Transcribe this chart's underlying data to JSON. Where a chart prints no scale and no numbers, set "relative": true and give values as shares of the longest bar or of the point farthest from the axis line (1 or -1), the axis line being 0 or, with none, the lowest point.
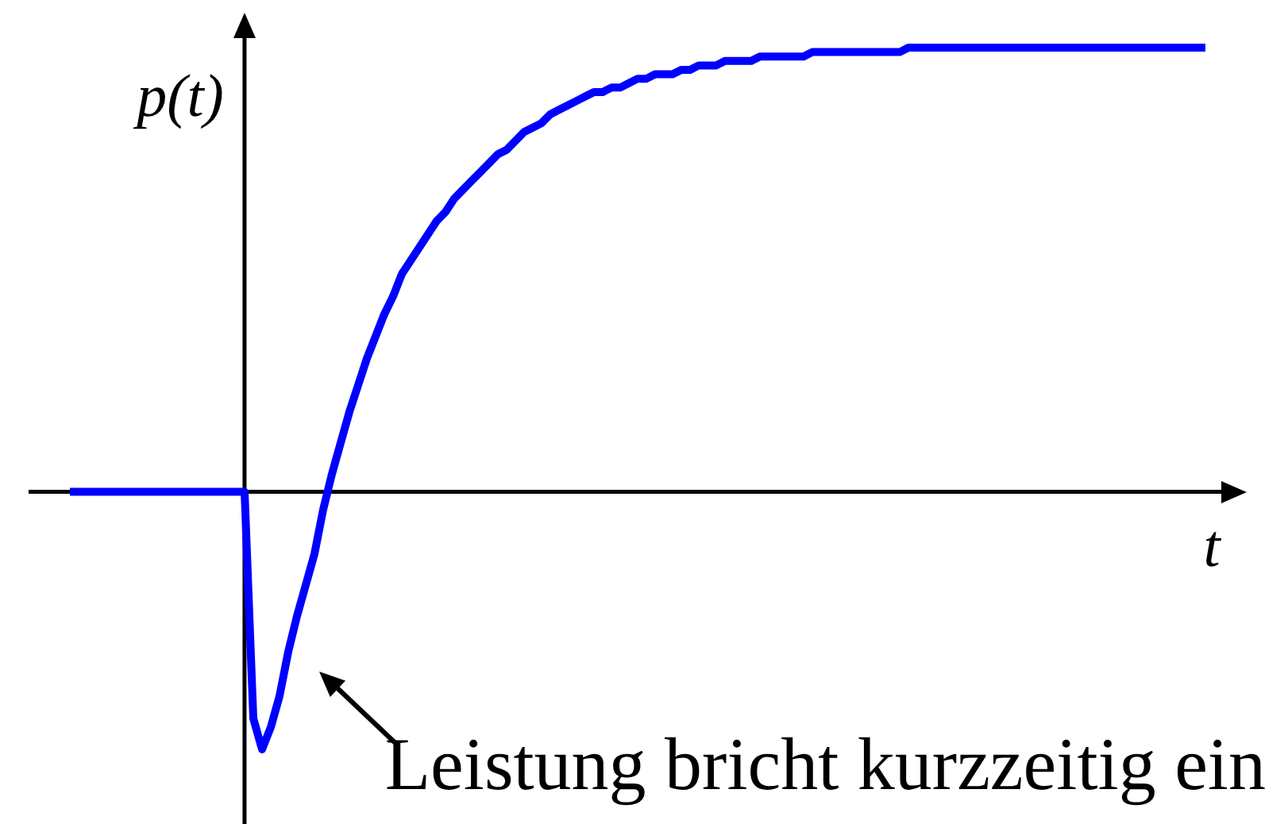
{
  "chart_data": {
    "type": "line",
    "relative": true,
    "xlabel": "t",
    "ylabel": "p(t)",
    "color": "#0000ff",
    "annotations": [
      "Leistung bricht kurzzeitig ein"
    ],
    "categories": [
      null,
      null,
      null,
      null,
      null,
      null,
      null,
      null,
      null,
      null,
      null,
      null,
      null,
      null,
      null,
      null,
      null,
      null,
      null,
      null,
      null,
      null,
      null,
      null,
      null,
      null,
      null,
      null,
      null,
      null,
      null,
      null,
      null,
      null,
      null,
      null,
      null,
      null,
      null,
      null,
      null,
      null,
      null,
      null,
      null,
      null,
      null,
      null,
      null,
      null,
      null,
      null,
      null,
      null,
      null,
      null,
      null,
      null,
      null,
      null,
      null,
      null,
      null,
      null,
      null,
      null,
      null,
      null,
      null,
      null,
      null,
      null,
      null,
      null,
      null,
      null,
      null,
      null,
      null,
      null,
      null,
      null,
      null,
      null,
      null,
      null,
      null,
      null,
      null,
      null,
      null,
      null,
      null,
      null,
      null,
      null,
      null,
      null,
      null,
      null,
      null,
      null,
      null,
      null,
      null,
      null,
      null,
      null,
      null,
      null,
      null,
      null,
      null,
      null,
      null,
      null,
      null,
      null,
      null,
      null,
      null,
      null,
      null,
      null,
      null,
      null,
      null,
      null,
      null,
      null,
      null
    ],
    "values": [
      0,
      0,
      0,
      0,
      0,
      0,
      0,
      0,
      0,
      0,
      0,
      0,
      0,
      0,
      0,
      0,
      0,
      0,
      0,
      0,
      0,
      -0.51,
      -0.58,
      -0.53,
      -0.46,
      -0.36,
      -0.28,
      -0.21,
      -0.14,
      -0.04,
      0.04,
      0.11,
      0.18,
      0.24,
      0.3,
      0.35,
      0.4,
      0.44,
      0.49,
      0.52,
      0.55,
      0.58,
      0.61,
      0.63,
      0.66,
      0.68,
      0.7,
      0.72,
      0.74,
      0.76,
      0.77,
      0.79,
      0.81,
      0.82,
      0.83,
      0.85,
      0.86,
      0.87,
      0.88,
      0.89,
      0.9,
      0.9,
      0.91,
      0.91,
      0.92,
      0.93,
      0.93,
      0.94,
      0.94,
      0.94,
      0.95,
      0.95,
      0.96,
      0.96,
      0.96,
      0.97,
      0.97,
      0.97,
      0.97,
      0.98,
      0.98,
      0.98,
      0.98,
      0.98,
      0.98,
      0.99,
      0.99,
      0.99,
      0.99,
      0.99,
      0.99,
      0.99,
      0.99,
      0.99,
      0.99,
      0.99,
      1,
      1,
      1,
      1,
      1,
      1,
      1,
      1,
      1,
      1,
      1,
      1,
      1,
      1,
      1,
      1,
      1,
      1,
      1,
      1,
      1,
      1,
      1,
      1,
      1,
      1,
      1,
      1,
      1,
      1,
      1,
      1,
      1,
      1,
      1
    ]
  }
}
